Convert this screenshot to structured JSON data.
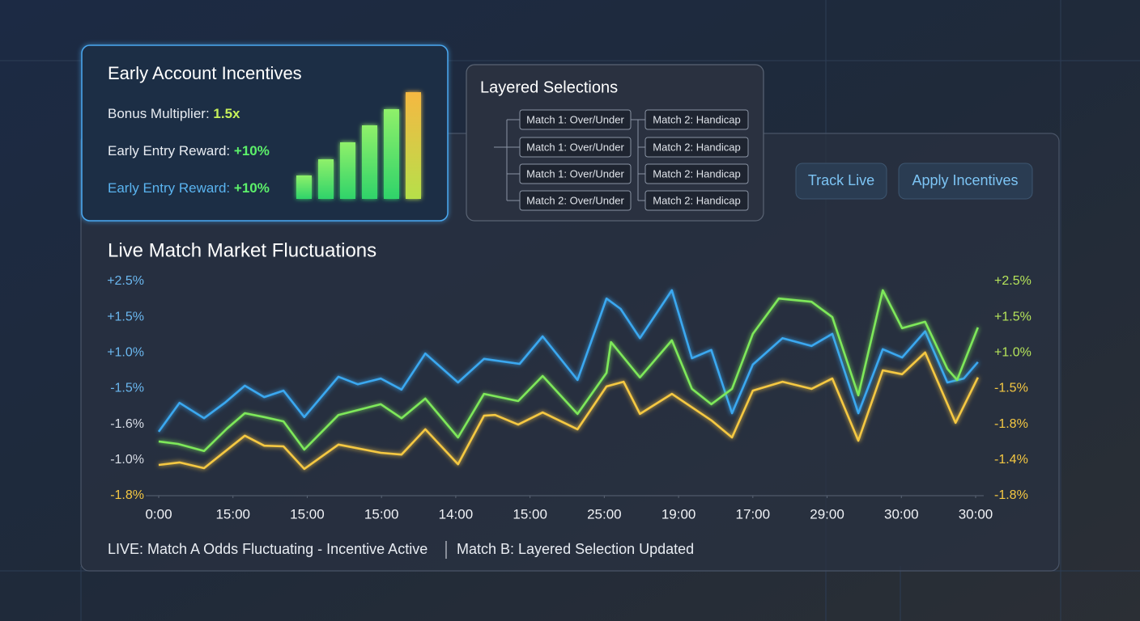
{
  "incentives": {
    "title": "Early Account Incentives",
    "rows": [
      {
        "label": "Bonus Multiplier: ",
        "value": "1.5x"
      },
      {
        "label": "Early Entry Reward: ",
        "value": "+10%"
      },
      {
        "label": "Early Entry Reward: ",
        "value": "+10%"
      }
    ]
  },
  "selections": {
    "title": "Layered Selections",
    "left": [
      "Match 1: Over/Under",
      "Match 1: Over/Under",
      "Match 1: Over/Under",
      "Match 2: Over/Under"
    ],
    "right": [
      "Match 2: Handicap",
      "Match 2: Handicap",
      "Match 2: Handicap",
      "Match 2: Handicap"
    ]
  },
  "buttons": [
    "Track Live",
    "Apply Incentives"
  ],
  "chart_data": {
    "type": "line",
    "title": "Live Match Market Fluctuations",
    "xlim": [
      0,
      11
    ],
    "xticks": [
      {
        "value": 0,
        "label": "0:00"
      },
      {
        "value": 1,
        "label": "15:00"
      },
      {
        "value": 2,
        "label": "15:00"
      },
      {
        "value": 3,
        "label": "15:00"
      },
      {
        "value": 4,
        "label": "14:00"
      },
      {
        "value": 5,
        "label": "15:00"
      },
      {
        "value": 6,
        "label": "25:00"
      },
      {
        "value": 7,
        "label": "19:00"
      },
      {
        "value": 8,
        "label": "17:00"
      },
      {
        "value": 9,
        "label": "29:00"
      },
      {
        "value": 10,
        "label": "30:00"
      },
      {
        "value": 11,
        "label": "30:00"
      }
    ],
    "ylim": [
      0,
      6
    ],
    "yticks": [
      {
        "value": 6,
        "label": "+2.5%"
      },
      {
        "value": 5,
        "label": "+1.5%"
      },
      {
        "value": 4,
        "label": "+1.0%"
      },
      {
        "value": 3,
        "label": "-1.5%"
      },
      {
        "value": 2,
        "label": "-1.6%"
      },
      {
        "value": 1,
        "label": "-1.0%"
      },
      {
        "value": 0,
        "label": "-1.8%"
      }
    ],
    "y2lim": [
      0,
      6
    ],
    "y2ticks": [
      {
        "value": 6,
        "label": "+2.5%"
      },
      {
        "value": 5,
        "label": "+1.5%"
      },
      {
        "value": 4,
        "label": "+1.0%"
      },
      {
        "value": 3,
        "label": "-1.5%"
      },
      {
        "value": 2,
        "label": "-1.8%"
      },
      {
        "value": 1,
        "label": "-1.4%"
      },
      {
        "value": 0,
        "label": "-1.8%"
      }
    ],
    "series": [
      {
        "color": "#3aa8f0",
        "x": [
          0,
          0.28,
          0.61,
          0.89,
          1.16,
          1.42,
          1.68,
          1.96,
          2.42,
          2.68,
          2.99,
          3.27,
          3.59,
          4.03,
          4.38,
          4.86,
          5.17,
          5.64,
          6.03,
          6.22,
          6.48,
          6.91,
          7.18,
          7.44,
          7.72,
          8.0,
          8.4,
          8.79,
          9.07,
          9.42,
          9.75,
          10.01,
          10.32,
          10.62,
          10.84,
          11.03
        ],
        "values": [
          1.79,
          2.6,
          2.17,
          2.6,
          3.08,
          2.76,
          2.94,
          2.2,
          3.33,
          3.12,
          3.28,
          2.97,
          3.98,
          3.17,
          3.83,
          3.69,
          4.46,
          3.24,
          5.52,
          5.23,
          4.41,
          5.75,
          3.85,
          4.08,
          2.31,
          3.67,
          4.41,
          4.19,
          4.53,
          2.31,
          4.1,
          3.87,
          4.6,
          3.17,
          3.28,
          3.74
        ]
      },
      {
        "color": "#7ee85a",
        "x": [
          0,
          0.26,
          0.61,
          0.92,
          1.16,
          1.42,
          1.68,
          1.96,
          2.42,
          2.99,
          3.27,
          3.59,
          4.03,
          4.38,
          4.84,
          5.17,
          5.64,
          6.03,
          6.09,
          6.48,
          6.91,
          7.18,
          7.44,
          7.72,
          8.0,
          8.35,
          8.79,
          9.07,
          9.42,
          9.75,
          10.01,
          10.32,
          10.62,
          10.75,
          11.03
        ],
        "values": [
          1.52,
          1.45,
          1.25,
          1.88,
          2.31,
          2.2,
          2.08,
          1.29,
          2.26,
          2.56,
          2.17,
          2.72,
          1.63,
          2.85,
          2.65,
          3.35,
          2.29,
          3.44,
          4.3,
          3.31,
          4.35,
          2.99,
          2.56,
          2.99,
          4.53,
          5.52,
          5.43,
          5.0,
          2.81,
          5.75,
          4.69,
          4.87,
          3.55,
          3.24,
          4.71
        ]
      },
      {
        "color": "#f5c842",
        "x": [
          0,
          0.28,
          0.61,
          1.16,
          1.42,
          1.68,
          1.96,
          2.42,
          2.99,
          3.27,
          3.59,
          4.03,
          4.38,
          4.53,
          4.84,
          5.17,
          5.64,
          6.03,
          6.26,
          6.48,
          6.91,
          7.44,
          7.72,
          8.0,
          8.4,
          8.79,
          9.07,
          9.42,
          9.75,
          10.01,
          10.32,
          10.73,
          11.03
        ],
        "values": [
          0.86,
          0.93,
          0.77,
          1.68,
          1.4,
          1.38,
          0.75,
          1.43,
          1.2,
          1.15,
          1.86,
          0.88,
          2.24,
          2.26,
          1.99,
          2.33,
          1.86,
          3.06,
          3.19,
          2.29,
          2.85,
          2.11,
          1.63,
          2.94,
          3.19,
          2.99,
          3.28,
          1.54,
          3.51,
          3.4,
          4.01,
          2.04,
          3.31
        ]
      }
    ]
  },
  "footer": {
    "left": "LIVE: Match A Odds Fluctuating - Incentive Active",
    "right": "Match B: Layered Selection Updated"
  }
}
